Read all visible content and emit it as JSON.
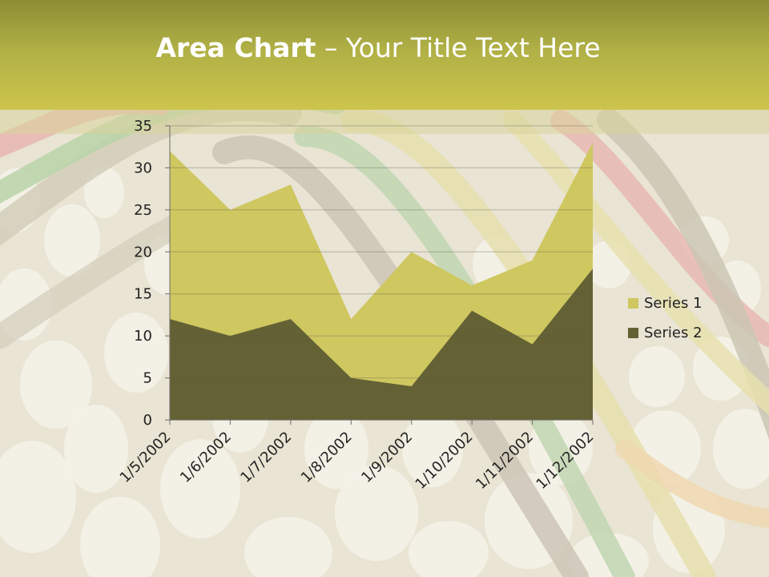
{
  "header": {
    "title_bold": "Area Chart",
    "title_rest": " – Your Title Text Here"
  },
  "colors": {
    "series1": "#cfc760",
    "series2": "#646234",
    "header": "#b0b046"
  },
  "chart_data": {
    "type": "area",
    "x": [
      "1/5/2002",
      "1/6/2002",
      "1/7/2002",
      "1/8/2002",
      "1/9/2002",
      "1/10/2002",
      "1/11/2002",
      "1/12/2002"
    ],
    "series": [
      {
        "name": "Series 1",
        "values": [
          32,
          25,
          28,
          12,
          20,
          16,
          19,
          33
        ]
      },
      {
        "name": "Series 2",
        "values": [
          12,
          10,
          12,
          5,
          4,
          13,
          9,
          18
        ]
      }
    ],
    "yticks": [
      "0",
      "5",
      "10",
      "15",
      "20",
      "25",
      "30",
      "35"
    ],
    "ylim": [
      0,
      35
    ],
    "grid": true,
    "legend": "right"
  }
}
